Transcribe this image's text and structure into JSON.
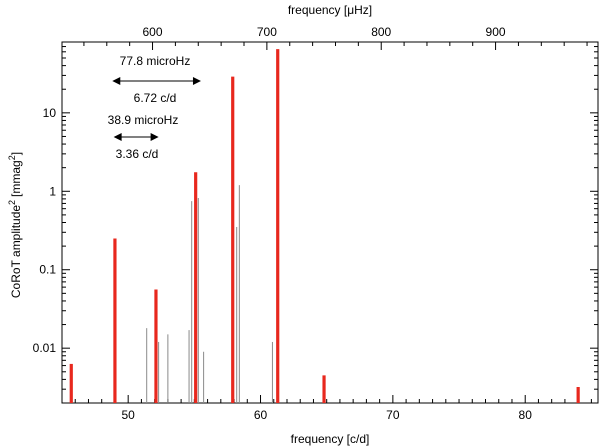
{
  "chart_data": {
    "type": "bar",
    "xlabel": "frequency [c/d]",
    "ylabel": "CoRoT amplitude",
    "ylabel_unit": "[mmag",
    "ylabel_sup": "2",
    "ylabel_close": "]",
    "top_xlabel": "frequency [",
    "top_xlabel_mu": "μ",
    "top_xlabel_unit": "Hz]",
    "xlim": [
      45,
      85.5
    ],
    "ylim": [
      0.002,
      80
    ],
    "yscale": "log",
    "x_ticks": [
      50,
      60,
      70,
      80
    ],
    "x_tick_labels": [
      "50",
      "60",
      "70",
      "80"
    ],
    "y_ticks": [
      0.01,
      0.1,
      1,
      10
    ],
    "y_tick_labels": [
      "0.01",
      "0.1",
      "1",
      "10"
    ],
    "top_ticks_uHz": [
      600,
      700,
      800,
      900
    ],
    "top_tick_labels": [
      "600",
      "700",
      "800",
      "900"
    ],
    "uHz_per_cd": 11.574,
    "series": [
      {
        "role": "red-peaks",
        "color": "#e8281e",
        "x": [
          45.7,
          49.0,
          52.1,
          55.1,
          57.9,
          61.3,
          64.8,
          84.0
        ],
        "values": [
          0.0063,
          0.25,
          0.056,
          1.75,
          29.0,
          65.0,
          0.0045,
          0.0032
        ]
      },
      {
        "role": "gray-lines",
        "color": "#8a8a8a",
        "x": [
          51.4,
          52.3,
          53.0,
          54.6,
          54.8,
          55.3,
          55.7,
          58.2,
          58.4,
          60.9
        ],
        "values": [
          0.018,
          0.012,
          0.015,
          0.017,
          0.75,
          0.82,
          0.009,
          0.35,
          1.2,
          0.012
        ]
      }
    ],
    "annotations": [
      {
        "text": "77.8 microHz",
        "role": "upper-label-top"
      },
      {
        "text": "6.72 c/d",
        "role": "upper-label-bottom",
        "x_start": 48.8,
        "x_end": 55.5,
        "y": 0.1
      },
      {
        "text": "38.9 microHz",
        "role": "lower-label-top"
      },
      {
        "text": "3.36 c/d",
        "role": "lower-label-bottom",
        "x_start": 48.9,
        "x_end": 52.3,
        "y": 0.01
      }
    ]
  }
}
